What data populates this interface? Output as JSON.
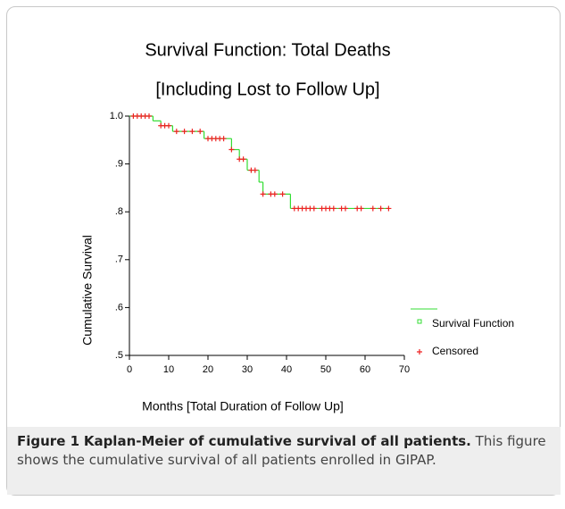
{
  "chart_data": {
    "type": "step",
    "title": "Survival Function: Total Deaths",
    "subtitle": "[Including Lost to Follow Up]",
    "x_label": "Months [Total Duration of Follow Up]",
    "y_label": "Cumulative Survival",
    "xlim": [
      0,
      70
    ],
    "xticks": [
      0,
      10,
      20,
      30,
      40,
      50,
      60,
      70
    ],
    "ylim": [
      0.5,
      1.0
    ],
    "yticks": [
      {
        "value": 0.5,
        "label": ".5"
      },
      {
        "value": 0.6,
        "label": ".6"
      },
      {
        "value": 0.7,
        "label": ".7"
      },
      {
        "value": 0.8,
        "label": ".8"
      },
      {
        "value": 0.9,
        "label": ".9"
      },
      {
        "value": 1.0,
        "label": "1.0"
      }
    ],
    "series": [
      {
        "name": "Survival Function",
        "color": "#33dd33",
        "x": [
          0,
          6,
          8,
          11,
          19,
          26,
          28,
          30,
          33,
          34,
          41,
          66
        ],
        "values": [
          1.0,
          0.99,
          0.98,
          0.968,
          0.953,
          0.93,
          0.91,
          0.887,
          0.862,
          0.837,
          0.807,
          0.807
        ]
      },
      {
        "name": "Censored",
        "color": "#ee2222",
        "x": [
          1,
          2,
          3,
          4,
          5,
          8,
          9,
          10,
          12,
          14,
          16,
          18,
          20,
          21,
          22,
          23,
          24,
          26,
          28,
          29,
          31,
          32,
          34,
          36,
          37,
          39,
          42,
          43,
          44,
          45,
          46,
          47,
          49,
          50,
          51,
          52,
          54,
          55,
          58,
          59,
          62,
          64,
          66
        ],
        "values": [
          1.0,
          1.0,
          1.0,
          1.0,
          1.0,
          0.98,
          0.98,
          0.98,
          0.968,
          0.968,
          0.968,
          0.968,
          0.953,
          0.953,
          0.953,
          0.953,
          0.953,
          0.93,
          0.91,
          0.91,
          0.887,
          0.887,
          0.837,
          0.837,
          0.837,
          0.837,
          0.807,
          0.807,
          0.807,
          0.807,
          0.807,
          0.807,
          0.807,
          0.807,
          0.807,
          0.807,
          0.807,
          0.807,
          0.807,
          0.807,
          0.807,
          0.807,
          0.807
        ]
      }
    ]
  },
  "caption": {
    "label": "Figure 1",
    "title": "Kaplan-Meier of cumulative survival of all patients.",
    "text": "This figure shows the cumulative survival of all patients enrolled in GIPAP."
  }
}
